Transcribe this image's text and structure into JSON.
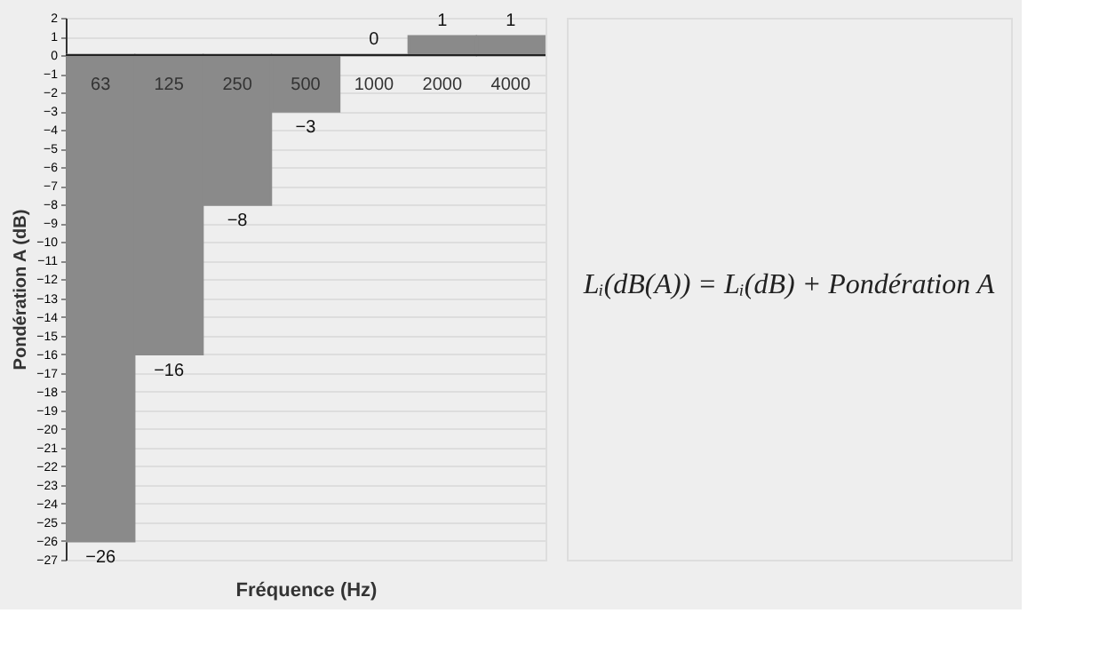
{
  "chart_data": {
    "type": "bar",
    "xlabel": "Fréquence (Hz)",
    "ylabel": "Pondération A (dB)",
    "categories": [
      "63",
      "125",
      "250",
      "500",
      "1000",
      "2000",
      "4000"
    ],
    "values": [
      -26,
      -16,
      -8,
      -3,
      0,
      1,
      1
    ],
    "color": "#8a8a8a",
    "ylim": [
      -27,
      2
    ],
    "yticks": [
      -27,
      -26,
      -25,
      -24,
      -23,
      -22,
      -21,
      -20,
      -19,
      -18,
      -17,
      -16,
      -15,
      -14,
      -13,
      -12,
      -11,
      -10,
      -9,
      -8,
      -7,
      -6,
      -5,
      -4,
      -3,
      -2,
      -1,
      0,
      1,
      2
    ],
    "grid": "y",
    "data_labels": true,
    "annotations": [
      "Lᵢ(dB(A)) = Lᵢ(dB) + Pondération A"
    ]
  }
}
